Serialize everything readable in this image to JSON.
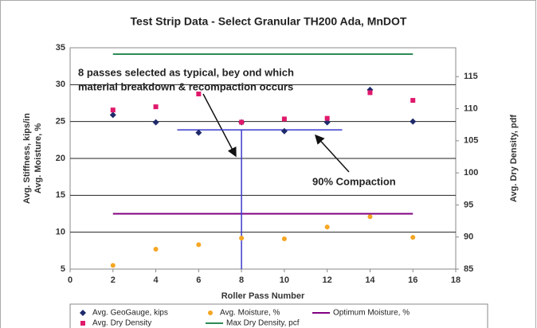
{
  "chart_data": {
    "type": "scatter",
    "title": "Test Strip Data - Select Granular TH200 Ada, MnDOT",
    "x_label": "Roller Pass Number",
    "y_label": [
      "Avg. Stiffness, kips/in",
      "Avg. Moisture, %"
    ],
    "y2_label": "Avg. Dry Density, pdf",
    "x": [
      2,
      4,
      6,
      8,
      10,
      12,
      14,
      16
    ],
    "series": [
      {
        "name": "Avg. GeoGauge, kips",
        "color": "#1f2a6b",
        "marker": "diamond",
        "values": [
          25.9,
          24.9,
          23.5,
          24.9,
          23.7,
          24.9,
          29.3,
          25.0
        ]
      },
      {
        "name": "Avg. Moisture, %",
        "color": "#f5a623",
        "marker": "circle",
        "values": [
          5.5,
          7.7,
          8.3,
          9.2,
          9.1,
          10.7,
          12.1,
          9.3
        ]
      },
      {
        "name": "Avg. Dry Density",
        "color": "#e0186c",
        "marker": "square",
        "axis": "y2",
        "values": [
          109.8,
          110.3,
          112.3,
          107.9,
          108.4,
          108.5,
          112.5,
          111.3
        ]
      }
    ],
    "reference_lines": [
      {
        "name": "Optimum Moisture, %",
        "color": "#800080",
        "value": 12.5,
        "x": [
          2,
          16
        ]
      },
      {
        "name": "Max Dry Density, pcf",
        "color": "#2e8b57",
        "axis": "y2",
        "value": 118.5,
        "x": [
          2,
          16
        ]
      }
    ],
    "compaction_line": {
      "color": "#3a3acc",
      "axis": "y2",
      "value": 106.7,
      "x": [
        5,
        12.7
      ]
    },
    "pass_line": {
      "color": "#3a3acc",
      "x": 8
    },
    "annotations": [
      {
        "text": [
          "8 passes selected as typical, bey ond which",
          "material breakdown & recompaction occurs"
        ]
      },
      {
        "text": [
          "90% Compaction"
        ]
      }
    ],
    "xlim": [
      0,
      18
    ],
    "xticks": [
      0,
      2,
      4,
      6,
      8,
      10,
      12,
      14,
      16,
      18
    ],
    "ylim": [
      5,
      35
    ],
    "yticks": [
      5,
      10,
      15,
      20,
      25,
      30,
      35
    ],
    "y2lim": [
      85,
      119.5
    ],
    "y2ticks": [
      85,
      90,
      95,
      100,
      105,
      110,
      115
    ],
    "grid": true
  }
}
